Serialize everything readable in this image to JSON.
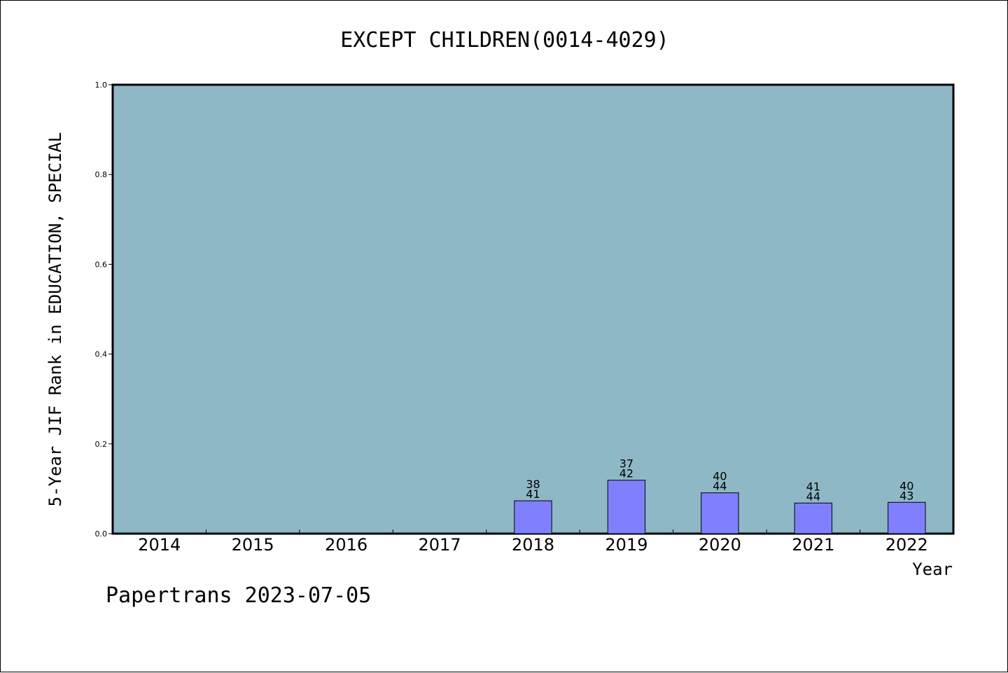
{
  "chart_data": {
    "type": "bar",
    "title": "EXCEPT CHILDREN(0014-4029)",
    "xlabel": "Year",
    "ylabel": "5-Year JIF Rank in EDUCATION, SPECIAL",
    "ylim": [
      0,
      1.0
    ],
    "yticks": [
      "0.0",
      "0.2",
      "0.4",
      "0.6",
      "0.8",
      "1.0"
    ],
    "categories": [
      "2014",
      "2015",
      "2016",
      "2017",
      "2018",
      "2019",
      "2020",
      "2021",
      "2022"
    ],
    "values": [
      null,
      null,
      null,
      null,
      0.0732,
      0.119,
      0.0909,
      0.0682,
      0.0698
    ],
    "ranks": [
      null,
      null,
      null,
      null,
      "38",
      "37",
      "40",
      "41",
      "40"
    ],
    "totals": [
      null,
      null,
      null,
      null,
      "41",
      "42",
      "44",
      "44",
      "43"
    ],
    "grid": false,
    "colors": {
      "plot_background": "#8fb8c6",
      "bar": "#8080ff"
    }
  },
  "footer": {
    "note": "Papertrans 2023-07-05"
  }
}
